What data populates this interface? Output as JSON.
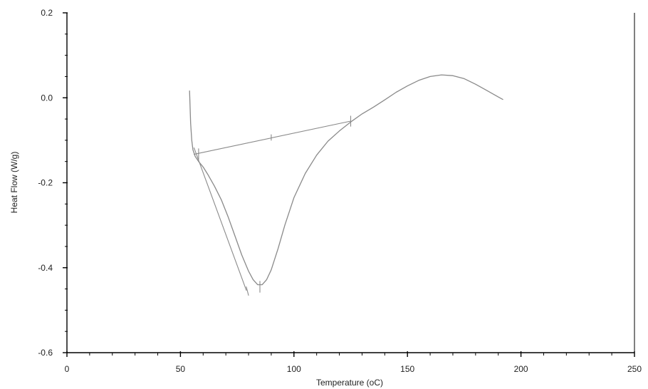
{
  "chart_data": {
    "type": "line",
    "title": "",
    "xlabel": "Temperature (oC)",
    "ylabel": "Heat Flow (W/g)",
    "xlim": [
      0,
      250
    ],
    "ylim": [
      -0.6,
      0.2
    ],
    "xticks": [
      0,
      50,
      100,
      150,
      200,
      250
    ],
    "xtick_labels": [
      "0",
      "50",
      "100",
      "150",
      "200",
      "250"
    ],
    "yticks": [
      0.2,
      0.0,
      -0.2,
      -0.4,
      -0.6
    ],
    "ytick_labels": [
      "0.2",
      "0.0",
      "-0.2",
      "-0.4",
      "-0.6"
    ],
    "grid": false,
    "legend": "none",
    "line_color": "#8a8a8a",
    "series": [
      {
        "points": [
          [
            54.0,
            0.016
          ],
          [
            54.5,
            -0.06
          ],
          [
            55.0,
            -0.1
          ],
          [
            55.5,
            -0.122
          ],
          [
            56.5,
            -0.138
          ],
          [
            58.0,
            -0.15
          ],
          [
            60.0,
            -0.163
          ],
          [
            62.0,
            -0.18
          ],
          [
            65.0,
            -0.208
          ],
          [
            68.0,
            -0.24
          ],
          [
            71.0,
            -0.28
          ],
          [
            74.0,
            -0.325
          ],
          [
            77.0,
            -0.37
          ],
          [
            80.0,
            -0.408
          ],
          [
            82.0,
            -0.428
          ],
          [
            84.0,
            -0.44
          ],
          [
            86.0,
            -0.44
          ],
          [
            88.0,
            -0.428
          ],
          [
            90.0,
            -0.405
          ],
          [
            93.0,
            -0.355
          ],
          [
            96.0,
            -0.3
          ],
          [
            100.0,
            -0.235
          ],
          [
            105.0,
            -0.178
          ],
          [
            110.0,
            -0.135
          ],
          [
            115.0,
            -0.102
          ],
          [
            120.0,
            -0.078
          ],
          [
            125.0,
            -0.057
          ],
          [
            130.0,
            -0.038
          ],
          [
            135.0,
            -0.022
          ],
          [
            140.0,
            -0.005
          ],
          [
            145.0,
            0.013
          ],
          [
            150.0,
            0.028
          ],
          [
            155.0,
            0.041
          ],
          [
            160.0,
            0.05
          ],
          [
            165.0,
            0.054
          ],
          [
            170.0,
            0.052
          ],
          [
            175.0,
            0.045
          ],
          [
            180.0,
            0.032
          ],
          [
            185.0,
            0.017
          ],
          [
            190.0,
            0.002
          ],
          [
            192.0,
            -0.004
          ]
        ]
      },
      {
        "points": [
          [
            56.0,
            -0.133
          ],
          [
            125.0,
            -0.055
          ]
        ]
      },
      {
        "points": [
          [
            56.0,
            -0.118
          ],
          [
            79.0,
            -0.453
          ]
        ]
      },
      {
        "points": [
          [
            58.0,
            -0.12
          ],
          [
            58.0,
            -0.145
          ]
        ]
      },
      {
        "points": [
          [
            90.0,
            -0.087
          ],
          [
            90.0,
            -0.1
          ]
        ]
      },
      {
        "points": [
          [
            125.0,
            -0.043
          ],
          [
            125.0,
            -0.067
          ]
        ]
      },
      {
        "points": [
          [
            85.0,
            -0.432
          ],
          [
            85.0,
            -0.458
          ]
        ]
      },
      {
        "points": [
          [
            79.0,
            -0.445
          ],
          [
            80.0,
            -0.465
          ]
        ]
      }
    ]
  }
}
